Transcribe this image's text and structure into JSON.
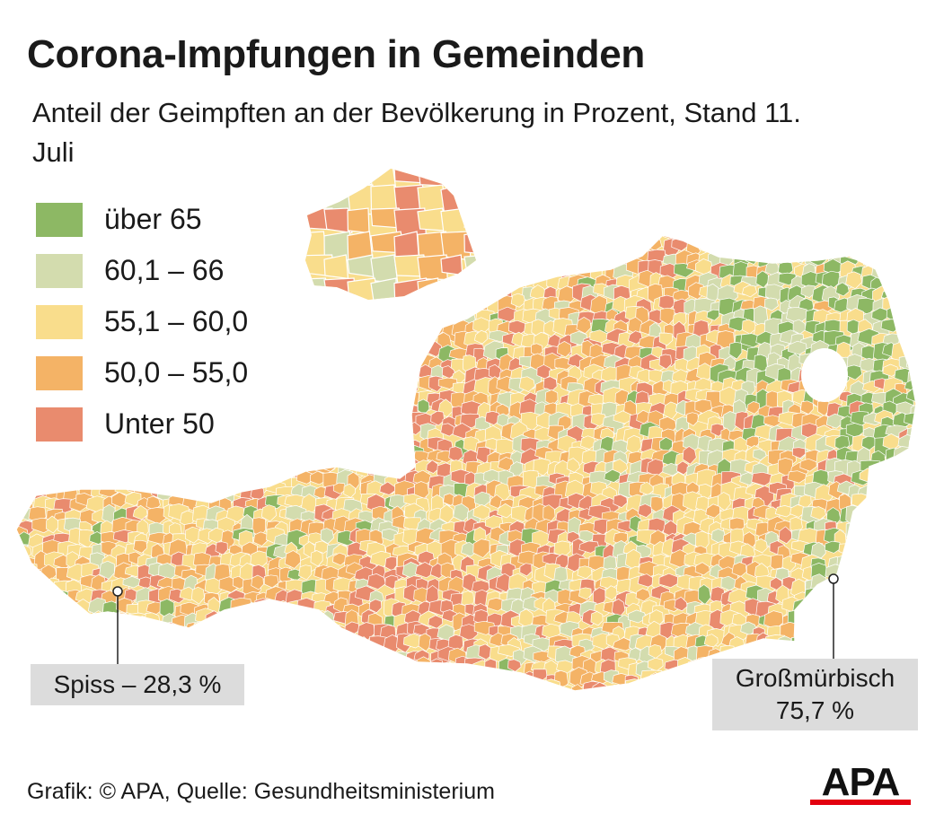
{
  "title": "Corona-Impfungen in Gemeinden",
  "subtitle": "Anteil der Geimpften an der Bevölkerung in Prozent, Stand 11. Juli",
  "legend": [
    {
      "label": "über 65",
      "color": "#8db864"
    },
    {
      "label": "60,1 – 66",
      "color": "#d3dcae"
    },
    {
      "label": "55,1 – 60,0",
      "color": "#f9dd8c"
    },
    {
      "label": "50,0 – 55,0",
      "color": "#f4b366"
    },
    {
      "label": "Unter 50",
      "color": "#e98b6e"
    }
  ],
  "callouts": {
    "spiss": {
      "text": "Spiss – 28,3 %",
      "value": 28.3
    },
    "grossmuerbisch": {
      "name": "Großmürbisch",
      "value_text": "75,7 %",
      "value": 75.7
    }
  },
  "footer": "Grafik: © APA, Quelle: Gesundheitsministerium",
  "logo": {
    "text": "APA",
    "bar_color": "#e3000f"
  }
}
